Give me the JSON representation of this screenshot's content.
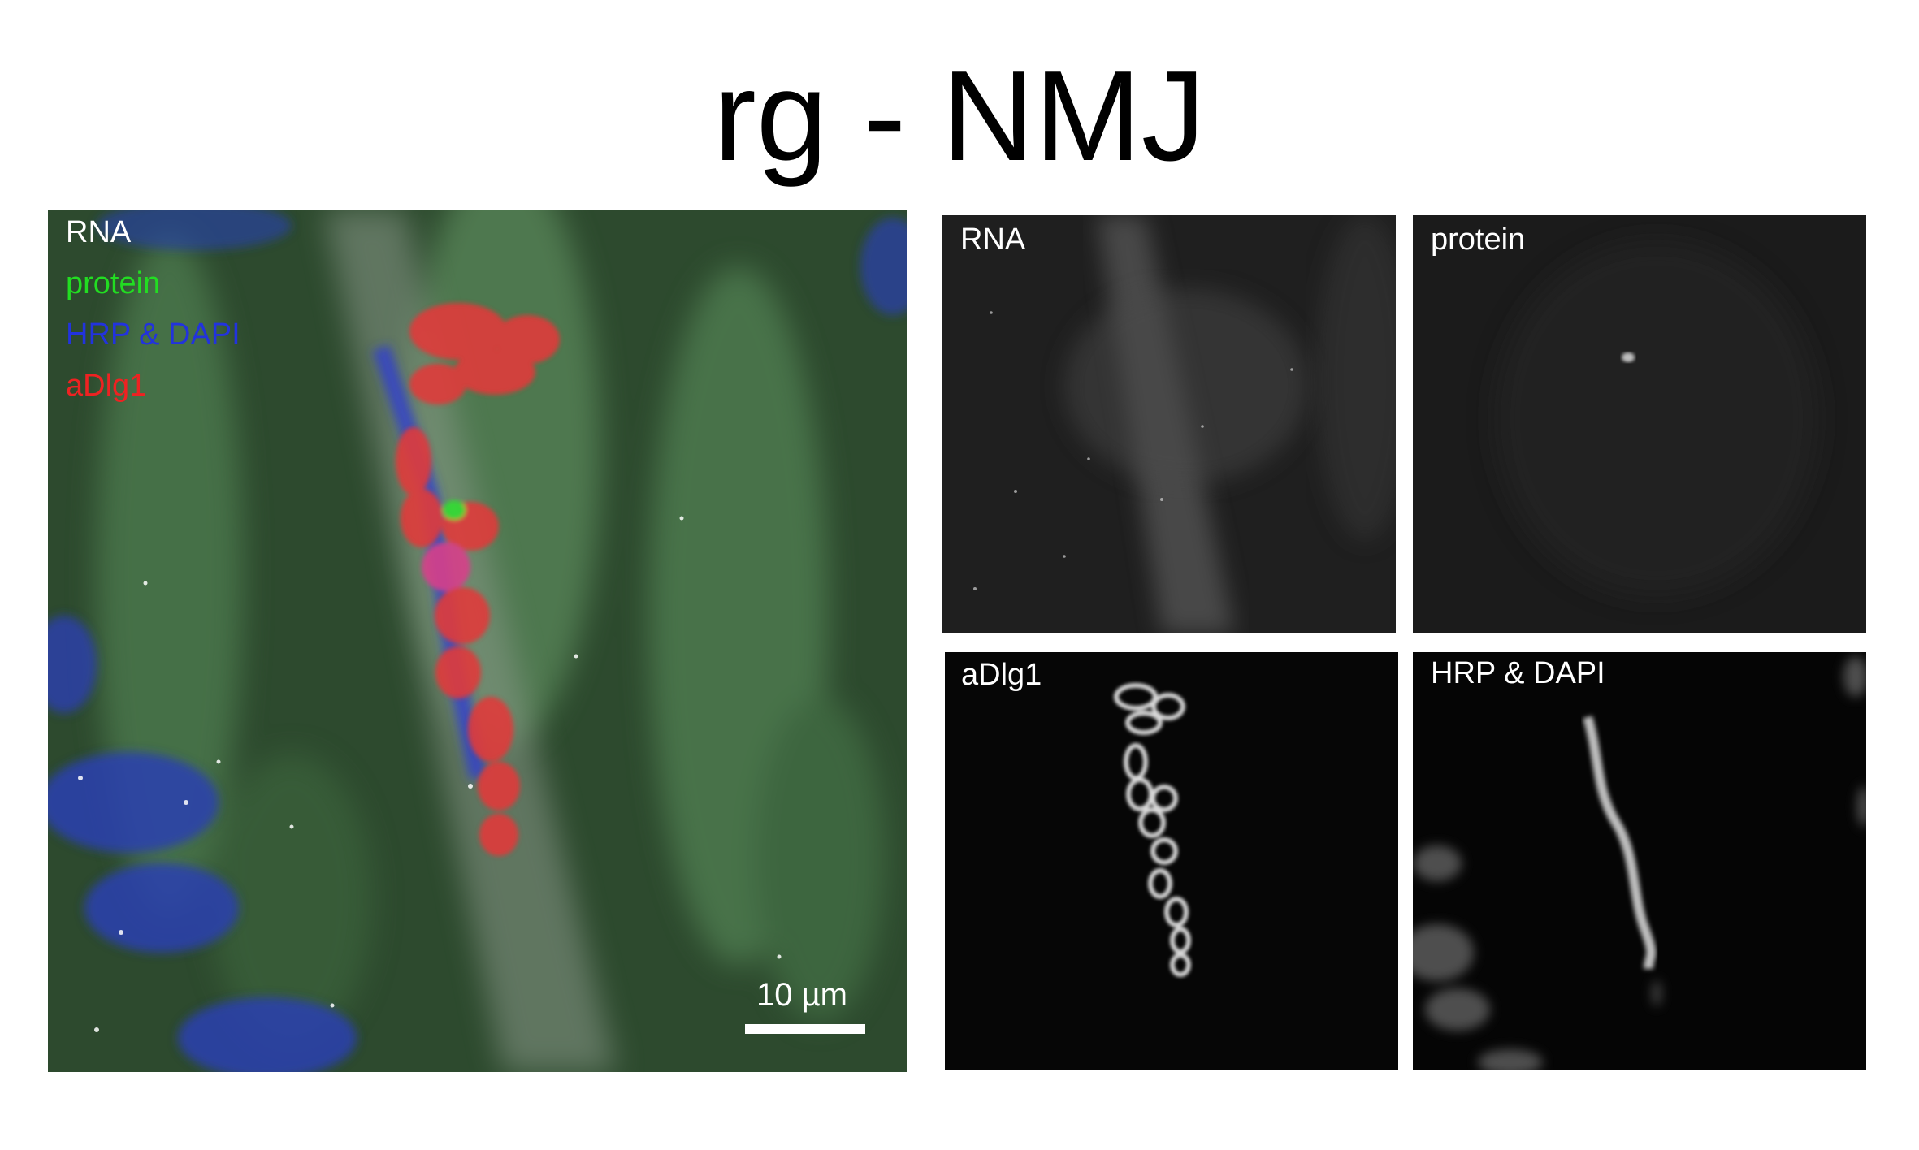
{
  "title": "rg - NMJ",
  "merge_panel": {
    "legend": [
      {
        "text": "RNA",
        "color": "#ffffff"
      },
      {
        "text": "protein",
        "color": "#22dd22"
      },
      {
        "text": "HRP & DAPI",
        "color": "#2233dd"
      },
      {
        "text": "aDlg1",
        "color": "#ee2222"
      }
    ],
    "scale_bar": "10 µm"
  },
  "channel_panels": {
    "rna": "RNA",
    "protein": "protein",
    "adlg1": "aDlg1",
    "hrp_dapi": "HRP & DAPI"
  }
}
